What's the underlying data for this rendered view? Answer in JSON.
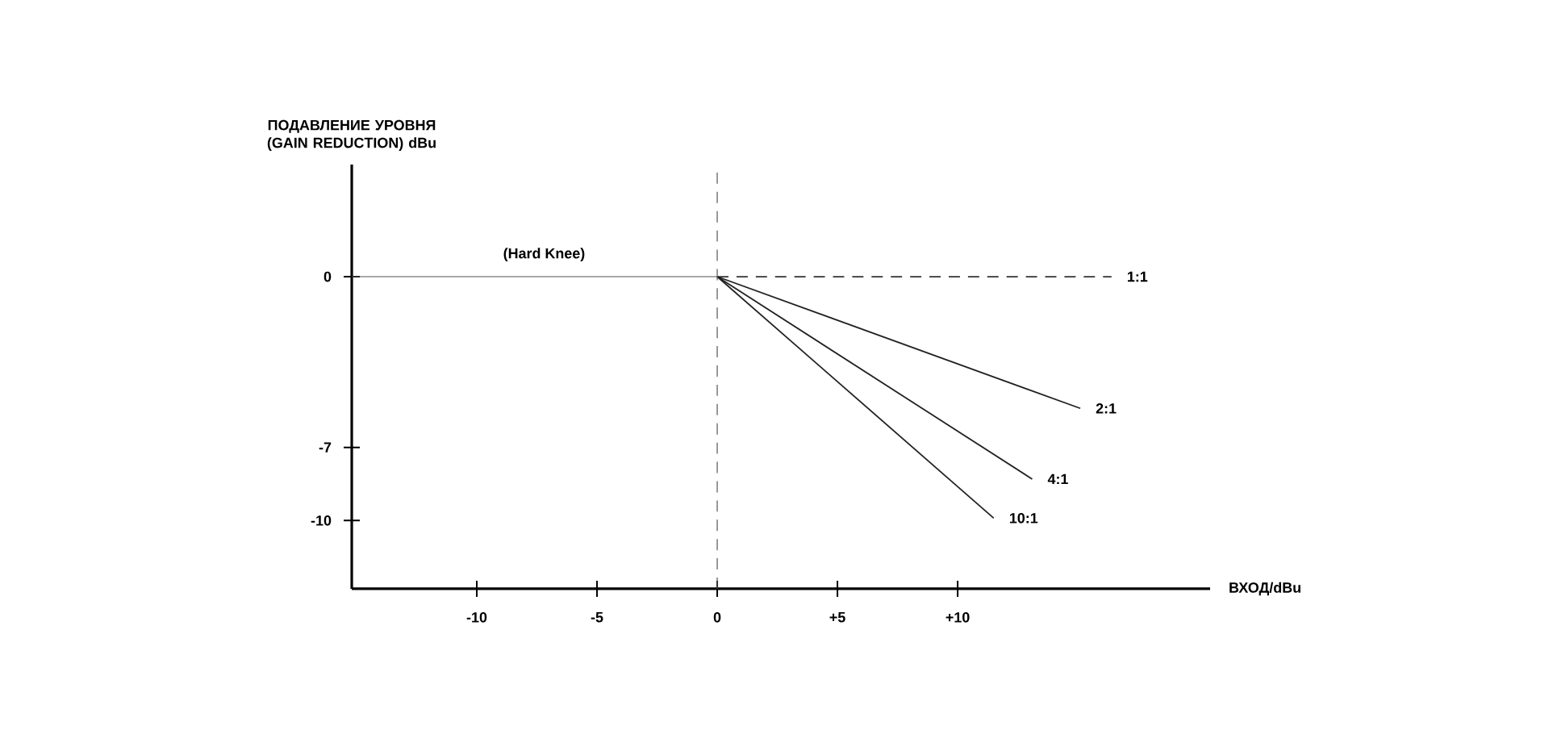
{
  "chart_data": {
    "type": "line",
    "ylabel": "ПОДАВЛЕНИЕ УРОВНЯ (GAIN REDUCTION) dBu",
    "xlabel": "ВХОД/dBu",
    "xlim": [
      -15.2,
      20.5
    ],
    "ylim": [
      -12.8,
      4.6
    ],
    "xticks": [
      -10,
      -5,
      0,
      {
        "value": 5,
        "label": "+5"
      },
      {
        "value": 10,
        "label": "+10"
      }
    ],
    "yticks": [
      0,
      -7,
      -10
    ],
    "series": [
      {
        "color": "#555555",
        "x": [
          -15.2,
          0
        ],
        "values": [
          0,
          0
        ]
      },
      {
        "name": "1:1",
        "color": "#333333",
        "line_style": "dashed",
        "x": [
          0,
          16.4
        ],
        "values": [
          0,
          0
        ]
      },
      {
        "name": "2:1",
        "color": "#222222",
        "x": [
          0,
          15.1
        ],
        "values": [
          0,
          -5.4
        ]
      },
      {
        "name": "4:1",
        "color": "#222222",
        "x": [
          0,
          13.1
        ],
        "values": [
          0,
          -8.3
        ]
      },
      {
        "name": "10:1",
        "color": "#222222",
        "x": [
          0,
          11.5
        ],
        "values": [
          0,
          -9.9
        ]
      }
    ],
    "ref_lines": [
      {
        "axis": "x",
        "value": 0,
        "line_style": "dashed",
        "color": "#555555"
      }
    ],
    "annotations": [
      {
        "text": "(Hard Knee)",
        "x": -7.2,
        "y": 0
      }
    ],
    "grid": false,
    "legend": false,
    "marker": "none"
  }
}
